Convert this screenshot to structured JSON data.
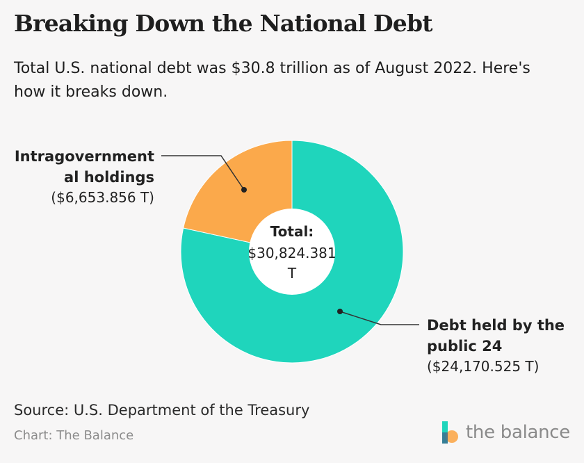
{
  "header": {
    "title": "Breaking Down the National Debt",
    "subtitle": "Total U.S. national debt was $30.8 trillion as of August 2022. Here's how it breaks down."
  },
  "chart_data": {
    "type": "pie",
    "style": "donut",
    "slices": [
      {
        "name_lines": [
          "Debt held by the",
          "public 24"
        ],
        "value": 24170.525,
        "value_label": "($24,170.525 T)",
        "color": "#1fd5bc"
      },
      {
        "name_lines": [
          "Intragovernment",
          "al holdings"
        ],
        "value": 6653.856,
        "value_label": "($6,653.856 T)",
        "color": "#fba94b"
      }
    ],
    "center": {
      "label": "Total:",
      "value_lines": [
        "$30,824.381",
        "T"
      ]
    }
  },
  "footer": {
    "source": "Source: U.S. Department of the Treasury",
    "credit": "Chart: The Balance",
    "logo_text": "the balance"
  },
  "colors": {
    "background": "#f7f6f6",
    "public": "#1fd5bc",
    "intragovernmental": "#fba94b",
    "leader_line": "#333333"
  }
}
